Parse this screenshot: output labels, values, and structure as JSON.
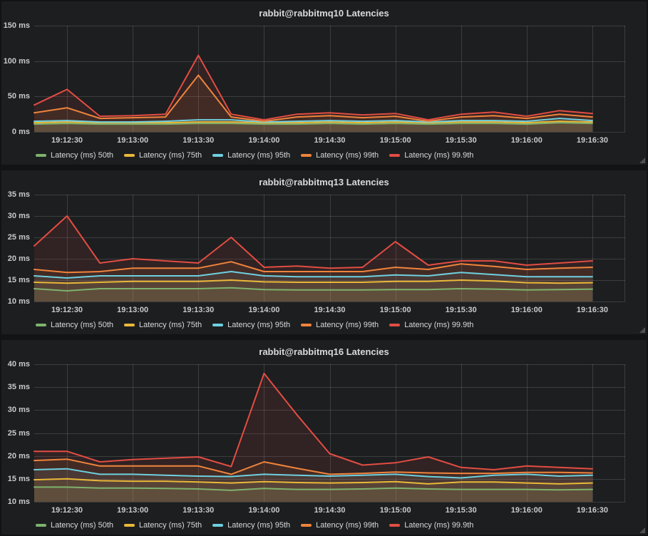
{
  "page": {
    "background": "#121315",
    "panel_background": "#1d1e20",
    "grid_color": "rgba(255,255,255,0.14)",
    "text_color": "#d8d9da",
    "tick_color": "#c9cacb"
  },
  "chart_data": [
    {
      "type": "line",
      "title": "rabbit@rabbitmq10 Latencies",
      "unit": "ms",
      "grid": true,
      "legend_position": "bottom",
      "fill_opacity": 0.1,
      "xlim": [
        "19:12:15",
        "19:16:45"
      ],
      "xticks": [
        "19:12:30",
        "19:13:00",
        "19:13:30",
        "19:14:00",
        "19:14:30",
        "19:15:00",
        "19:15:30",
        "19:16:00",
        "19:16:30"
      ],
      "ylim": [
        0,
        150
      ],
      "yticks": [
        0,
        50,
        100,
        150
      ],
      "x": [
        "19:12:15",
        "19:12:30",
        "19:12:45",
        "19:13:00",
        "19:13:15",
        "19:13:30",
        "19:13:45",
        "19:14:00",
        "19:14:15",
        "19:14:30",
        "19:14:45",
        "19:15:00",
        "19:15:15",
        "19:15:30",
        "19:15:45",
        "19:16:00",
        "19:16:15",
        "19:16:30"
      ],
      "series": [
        {
          "name": "Latency (ms) 50th",
          "color": "#7EB26D",
          "values": [
            11,
            12,
            11,
            11,
            11,
            12,
            12,
            11,
            11,
            12,
            11,
            12,
            11,
            12,
            12,
            11,
            13,
            12
          ]
        },
        {
          "name": "Latency (ms) 75th",
          "color": "#EAB839",
          "values": [
            13,
            14,
            13,
            13,
            13,
            14,
            14,
            13,
            13,
            14,
            13,
            14,
            13,
            14,
            14,
            13,
            15,
            14
          ]
        },
        {
          "name": "Latency (ms) 95th",
          "color": "#6ED0E0",
          "values": [
            15,
            16,
            14,
            14,
            15,
            17,
            17,
            14,
            15,
            16,
            15,
            16,
            14,
            16,
            16,
            15,
            19,
            16
          ]
        },
        {
          "name": "Latency (ms) 99th",
          "color": "#EF843C",
          "values": [
            27,
            34,
            19,
            20,
            21,
            80,
            21,
            15,
            21,
            23,
            20,
            22,
            15,
            21,
            23,
            19,
            25,
            21
          ]
        },
        {
          "name": "Latency (ms) 99.9th",
          "color": "#E24D42",
          "values": [
            38,
            60,
            22,
            23,
            25,
            108,
            25,
            17,
            25,
            27,
            24,
            26,
            17,
            25,
            28,
            22,
            30,
            26
          ]
        }
      ]
    },
    {
      "type": "line",
      "title": "rabbit@rabbitmq13 Latencies",
      "unit": "ms",
      "grid": true,
      "legend_position": "bottom",
      "fill_opacity": 0.1,
      "xlim": [
        "19:12:15",
        "19:16:45"
      ],
      "xticks": [
        "19:12:30",
        "19:13:00",
        "19:13:30",
        "19:14:00",
        "19:14:30",
        "19:15:00",
        "19:15:30",
        "19:16:00",
        "19:16:30"
      ],
      "ylim": [
        10,
        35
      ],
      "yticks": [
        10,
        15,
        20,
        25,
        30,
        35
      ],
      "x": [
        "19:12:15",
        "19:12:30",
        "19:12:45",
        "19:13:00",
        "19:13:15",
        "19:13:30",
        "19:13:45",
        "19:14:00",
        "19:14:15",
        "19:14:30",
        "19:14:45",
        "19:15:00",
        "19:15:15",
        "19:15:30",
        "19:15:45",
        "19:16:00",
        "19:16:15",
        "19:16:30"
      ],
      "series": [
        {
          "name": "Latency (ms) 50th",
          "color": "#7EB26D",
          "values": [
            13,
            12.5,
            13,
            13,
            13,
            13,
            13.2,
            12.8,
            12.7,
            12.7,
            12.7,
            12.8,
            12.8,
            13,
            12.9,
            12.7,
            12.8,
            12.9
          ]
        },
        {
          "name": "Latency (ms) 75th",
          "color": "#EAB839",
          "values": [
            14.5,
            14.3,
            14.5,
            14.7,
            14.7,
            14.7,
            15,
            14.6,
            14.5,
            14.5,
            14.5,
            14.7,
            14.7,
            15,
            14.8,
            14.4,
            14.3,
            14.4
          ]
        },
        {
          "name": "Latency (ms) 95th",
          "color": "#6ED0E0",
          "values": [
            16,
            15.5,
            16,
            16,
            16,
            16,
            17,
            16,
            15.8,
            15.8,
            15.8,
            16.2,
            16,
            16.8,
            16.3,
            15.8,
            15.8,
            15.8
          ]
        },
        {
          "name": "Latency (ms) 99th",
          "color": "#EF843C",
          "values": [
            17.5,
            16.8,
            17,
            17.8,
            17.8,
            17.8,
            19.3,
            17,
            17,
            17,
            17,
            18,
            17.5,
            18.8,
            18.2,
            17.5,
            17.8,
            18
          ]
        },
        {
          "name": "Latency (ms) 99.9th",
          "color": "#E24D42",
          "values": [
            23,
            30,
            19,
            20,
            19.5,
            19,
            25,
            18,
            18.3,
            17.8,
            18,
            24,
            18.5,
            19.5,
            19.5,
            18.5,
            19,
            19.5
          ]
        }
      ]
    },
    {
      "type": "line",
      "title": "rabbit@rabbitmq16 Latencies",
      "unit": "ms",
      "grid": true,
      "legend_position": "bottom",
      "fill_opacity": 0.1,
      "xlim": [
        "19:12:15",
        "19:16:45"
      ],
      "xticks": [
        "19:12:30",
        "19:13:00",
        "19:13:30",
        "19:14:00",
        "19:14:30",
        "19:15:00",
        "19:15:30",
        "19:16:00",
        "19:16:30"
      ],
      "ylim": [
        10,
        40
      ],
      "yticks": [
        10,
        15,
        20,
        25,
        30,
        35,
        40
      ],
      "x": [
        "19:12:15",
        "19:12:30",
        "19:12:45",
        "19:13:00",
        "19:13:15",
        "19:13:30",
        "19:13:45",
        "19:14:00",
        "19:14:15",
        "19:14:30",
        "19:14:45",
        "19:15:00",
        "19:15:15",
        "19:15:30",
        "19:15:45",
        "19:16:00",
        "19:16:15",
        "19:16:30"
      ],
      "series": [
        {
          "name": "Latency (ms) 50th",
          "color": "#7EB26D",
          "values": [
            13.2,
            13.2,
            13,
            13,
            12.9,
            12.8,
            12.5,
            12.9,
            12.7,
            12.7,
            12.8,
            13,
            12.8,
            12.7,
            12.7,
            12.7,
            12.6,
            12.7
          ]
        },
        {
          "name": "Latency (ms) 75th",
          "color": "#EAB839",
          "values": [
            14.8,
            15,
            14.6,
            14.5,
            14.5,
            14.3,
            14.1,
            14.4,
            14.2,
            14.1,
            14.2,
            14.4,
            13.9,
            14.3,
            14.3,
            14.1,
            13.9,
            14.1
          ]
        },
        {
          "name": "Latency (ms) 95th",
          "color": "#6ED0E0",
          "values": [
            17,
            17.2,
            16,
            16,
            15.8,
            15.6,
            15.5,
            16,
            15.8,
            15.6,
            15.8,
            16,
            15.5,
            15.2,
            15.8,
            16,
            15.6,
            15.8
          ]
        },
        {
          "name": "Latency (ms) 99th",
          "color": "#EF843C",
          "values": [
            19,
            19.3,
            17.8,
            17.8,
            17.8,
            17.8,
            16,
            18.7,
            17.3,
            16,
            16.2,
            16.5,
            16.3,
            16.2,
            16.2,
            16.4,
            16.4,
            16.3
          ]
        },
        {
          "name": "Latency (ms) 99.9th",
          "color": "#E24D42",
          "values": [
            21,
            21,
            18.7,
            19.2,
            19.5,
            19.8,
            17.7,
            38,
            29,
            20.5,
            18,
            18.5,
            19.8,
            17.5,
            17,
            17.8,
            17.5,
            17.2
          ]
        }
      ]
    }
  ]
}
